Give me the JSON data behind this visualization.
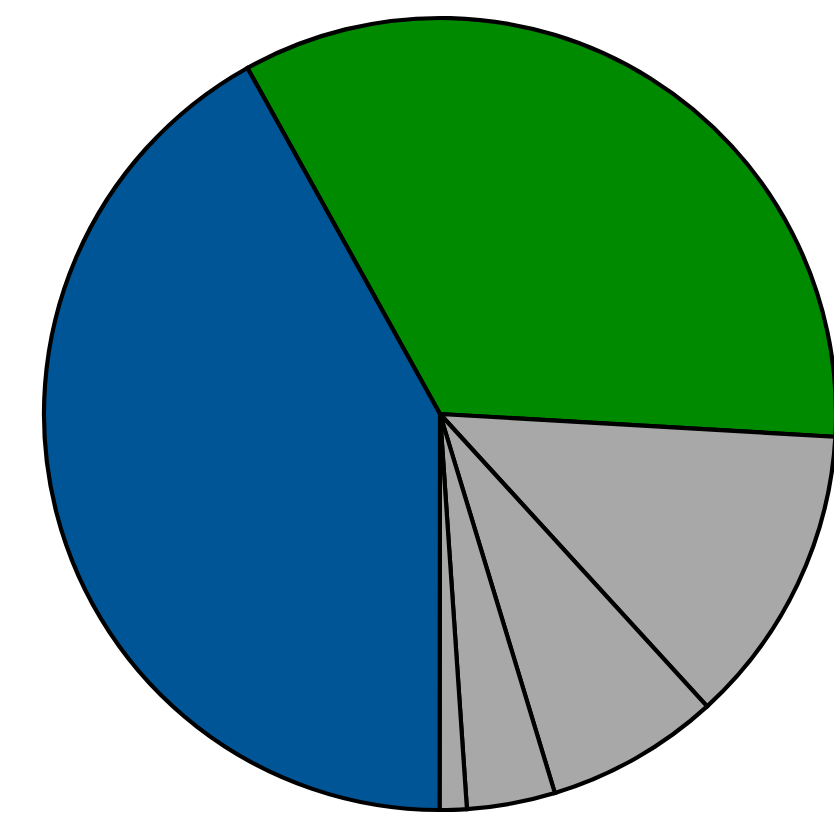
{
  "chart_data": {
    "type": "pie",
    "categories": [
      null,
      null,
      null,
      null,
      null,
      null
    ],
    "values": [
      34.0,
      12.3,
      7.1,
      3.6,
      1.1,
      41.9
    ],
    "colors": [
      "#008a00",
      "#a8a8a8",
      "#a8a8a8",
      "#a8a8a8",
      "#a8a8a8",
      "#005596"
    ]
  }
}
